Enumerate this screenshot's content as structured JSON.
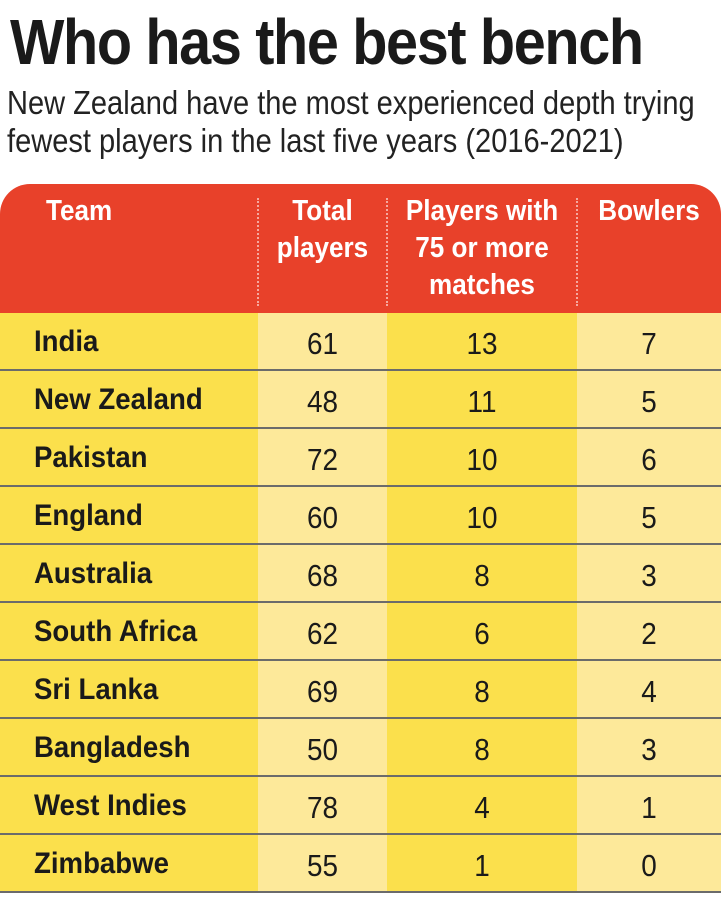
{
  "title": "Who has the best bench",
  "subtitle": "New Zealand have the most experienced depth trying fewest players in the last five years (2016-2021)",
  "colors": {
    "header": "#e8412a",
    "row": "#fbe04c",
    "shaded_column": "#fde99a",
    "divider": "#6b6b6b"
  },
  "chart_data": {
    "type": "table",
    "columns": [
      "Team",
      "Total players",
      "Players with 75 or more matches",
      "Bowlers"
    ],
    "header_lines": [
      [
        "Team"
      ],
      [
        "Total",
        "players"
      ],
      [
        "Players with",
        "75 or more",
        "matches"
      ],
      [
        "Bowlers"
      ]
    ],
    "rows": [
      [
        "India",
        61,
        13,
        7
      ],
      [
        "New Zealand",
        48,
        11,
        5
      ],
      [
        "Pakistan",
        72,
        10,
        6
      ],
      [
        "England",
        60,
        10,
        5
      ],
      [
        "Australia",
        68,
        8,
        3
      ],
      [
        "South Africa",
        62,
        6,
        2
      ],
      [
        "Sri Lanka",
        69,
        8,
        4
      ],
      [
        "Bangladesh",
        50,
        8,
        3
      ],
      [
        "West Indies",
        78,
        4,
        1
      ],
      [
        "Zimbabwe",
        55,
        1,
        0
      ]
    ]
  }
}
